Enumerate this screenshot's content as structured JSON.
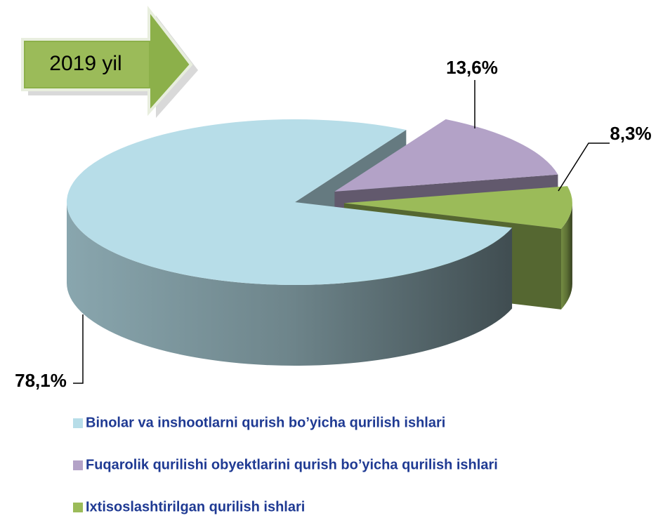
{
  "chart_data": {
    "type": "pie",
    "title": "2019 yil",
    "categories": [
      "Binolar va inshootlarni qurish bo’yicha qurilish ishlari",
      "Fuqarolik qurilishi obyektlarini qurish bo’yicha qurilish ishlari",
      "Ixtisoslashtirilgan qurilish ishlari"
    ],
    "values": [
      78.1,
      13.6,
      8.3
    ],
    "value_labels": [
      "78,1%",
      "13,6%",
      "8,3%"
    ],
    "colors": [
      "#b7dde8",
      "#b3a2c7",
      "#9bbb59"
    ],
    "legend": "bottom"
  }
}
